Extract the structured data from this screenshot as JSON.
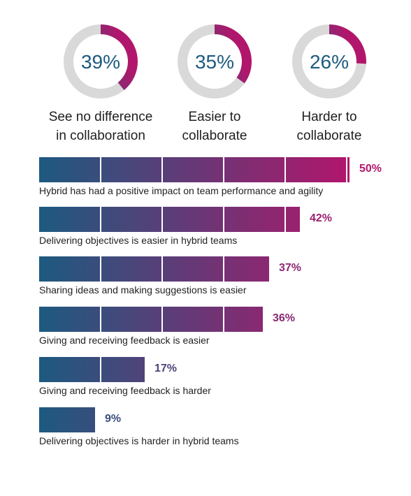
{
  "colors": {
    "start": "#1d5a80",
    "end": "#b2166c",
    "track": "#d9d9d9",
    "text": "#1f1f1f"
  },
  "chart_data": [
    {
      "type": "pie",
      "slices": [
        {
          "value": 39,
          "display": "39%",
          "caption_lines": [
            "See no difference",
            "in collaboration"
          ]
        },
        {
          "value": 35,
          "display": "35%",
          "caption_lines": [
            "Easier to",
            "collaborate"
          ]
        },
        {
          "value": 26,
          "display": "26%",
          "caption_lines": [
            "Harder to",
            "collaborate"
          ]
        }
      ]
    },
    {
      "type": "bar",
      "categories": [
        "Hybrid has had a positive impact on team performance and agility",
        "Delivering objectives is easier in hybrid teams",
        "Sharing ideas and making suggestions is easier",
        "Giving and receiving feedback is easier",
        "Giving and receiving feedback is harder",
        "Delivering objectives is harder in hybrid teams"
      ],
      "values": [
        50,
        42,
        37,
        36,
        17,
        9
      ],
      "value_labels": [
        "50%",
        "42%",
        "37%",
        "36%",
        "17%",
        "9%"
      ],
      "xlim": [
        0,
        50
      ]
    }
  ]
}
